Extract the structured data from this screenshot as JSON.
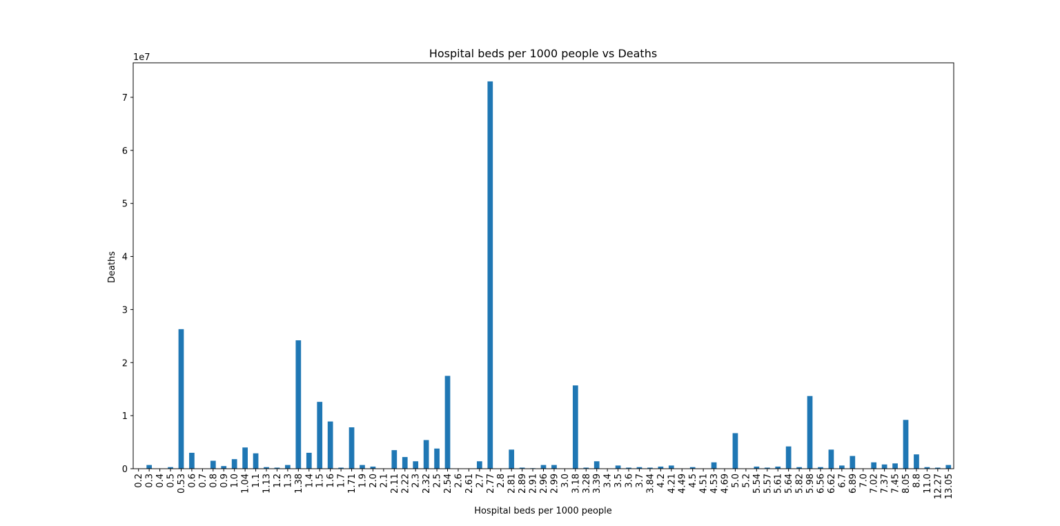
{
  "chart_data": {
    "type": "bar",
    "title": "Hospital beds per 1000 people vs Deaths",
    "xlabel": "Hospital beds per 1000 people",
    "ylabel": "Deaths",
    "y_offset_text": "1e7",
    "y_scale_factor": 10000000,
    "ylim": [
      0,
      76500000
    ],
    "y_ticks": [
      0,
      10000000,
      20000000,
      30000000,
      40000000,
      50000000,
      60000000,
      70000000
    ],
    "y_tick_labels": [
      "0",
      "1",
      "2",
      "3",
      "4",
      "5",
      "6",
      "7"
    ],
    "bar_color": "#1f77b4",
    "grid": false,
    "legend": "none",
    "categories": [
      "0.2",
      "0.3",
      "0.4",
      "0.5",
      "0.53",
      "0.6",
      "0.7",
      "0.8",
      "0.9",
      "1.0",
      "1.04",
      "1.1",
      "1.13",
      "1.2",
      "1.3",
      "1.38",
      "1.4",
      "1.5",
      "1.6",
      "1.7",
      "1.71",
      "1.9",
      "2.0",
      "2.1",
      "2.11",
      "2.22",
      "2.3",
      "2.32",
      "2.5",
      "2.54",
      "2.6",
      "2.61",
      "2.7",
      "2.77",
      "2.8",
      "2.81",
      "2.89",
      "2.91",
      "2.96",
      "2.99",
      "3.0",
      "3.18",
      "3.28",
      "3.39",
      "3.4",
      "3.5",
      "3.6",
      "3.7",
      "3.84",
      "4.2",
      "4.21",
      "4.49",
      "4.5",
      "4.51",
      "4.53",
      "4.69",
      "5.0",
      "5.2",
      "5.54",
      "5.57",
      "5.61",
      "5.64",
      "5.82",
      "5.98",
      "6.56",
      "6.62",
      "6.7",
      "6.89",
      "7.0",
      "7.02",
      "7.37",
      "7.45",
      "8.05",
      "8.8",
      "11.0",
      "12.27",
      "13.05"
    ],
    "values": [
      50000,
      700000,
      50000,
      300000,
      26300000,
      3000000,
      50000,
      1500000,
      500000,
      1800000,
      4000000,
      2900000,
      300000,
      200000,
      700000,
      24200000,
      3000000,
      12600000,
      8900000,
      200000,
      7800000,
      700000,
      400000,
      50000,
      3500000,
      2200000,
      1400000,
      5400000,
      3800000,
      17500000,
      50000,
      50000,
      1400000,
      73000000,
      50000,
      3600000,
      200000,
      100000,
      700000,
      700000,
      50000,
      15700000,
      200000,
      1400000,
      50000,
      600000,
      200000,
      300000,
      200000,
      400000,
      600000,
      50000,
      300000,
      50000,
      1200000,
      50000,
      6700000,
      50000,
      400000,
      200000,
      400000,
      4200000,
      300000,
      13700000,
      300000,
      3600000,
      600000,
      2400000,
      50000,
      1200000,
      800000,
      1000000,
      9200000,
      2700000,
      300000,
      200000,
      700000
    ]
  }
}
